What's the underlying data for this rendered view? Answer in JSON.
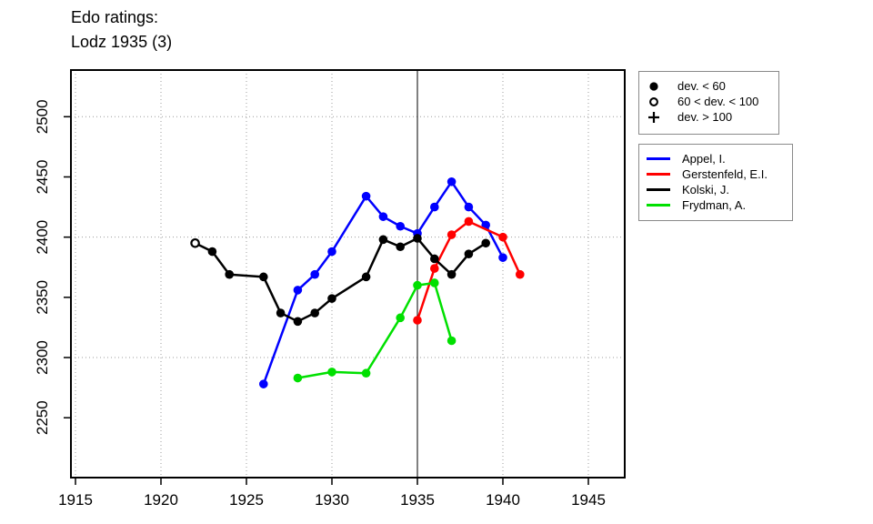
{
  "chart_data": {
    "type": "line",
    "title": "Edo ratings:",
    "subtitle": "Lodz 1935 (3)",
    "xlabel": "",
    "ylabel": "",
    "xlim": [
      1913.5,
      1947
    ],
    "ylim": [
      2195,
      2540
    ],
    "x_ticks": [
      1915,
      1920,
      1925,
      1930,
      1935,
      1940,
      1945
    ],
    "y_ticks": [
      2250,
      2300,
      2350,
      2400,
      2450,
      2500
    ],
    "v_gridlines": [
      1915,
      1920,
      1925,
      1930,
      1940,
      1945
    ],
    "h_gridlines": [
      2300,
      2400,
      2500
    ],
    "event_line_x": 1935,
    "grid": true,
    "legend_position": "top-right",
    "marker_legend": [
      {
        "symbol": "filled-circle",
        "label": "dev. < 60"
      },
      {
        "symbol": "open-circle",
        "label": "60 < dev. < 100"
      },
      {
        "symbol": "plus",
        "label": "dev. > 100"
      }
    ],
    "series": [
      {
        "name": "Appel, I.",
        "color": "#0000FF",
        "points": [
          [
            1926,
            2278
          ],
          [
            1928,
            2356
          ],
          [
            1929,
            2369
          ],
          [
            1930,
            2388
          ],
          [
            1932,
            2434
          ],
          [
            1933,
            2417
          ],
          [
            1934,
            2409
          ],
          [
            1935,
            2403
          ],
          [
            1936,
            2425
          ],
          [
            1937,
            2446
          ],
          [
            1938,
            2425
          ],
          [
            1939,
            2410
          ],
          [
            1940,
            2383
          ]
        ]
      },
      {
        "name": "Gerstenfeld, E.I.",
        "color": "#FF0000",
        "points": [
          [
            1935,
            2331
          ],
          [
            1936,
            2374
          ],
          [
            1937,
            2402
          ],
          [
            1938,
            2413
          ],
          [
            1940,
            2400
          ],
          [
            1941,
            2369
          ]
        ]
      },
      {
        "name": "Kolski, J.",
        "color": "#000000",
        "points": [
          [
            1922,
            2395,
            "open"
          ],
          [
            1923,
            2388
          ],
          [
            1924,
            2369
          ],
          [
            1926,
            2367
          ],
          [
            1927,
            2337
          ],
          [
            1928,
            2330
          ],
          [
            1929,
            2337
          ],
          [
            1930,
            2349
          ],
          [
            1932,
            2367
          ],
          [
            1933,
            2398
          ],
          [
            1934,
            2392
          ],
          [
            1935,
            2399
          ],
          [
            1936,
            2382
          ],
          [
            1937,
            2369
          ],
          [
            1938,
            2386
          ],
          [
            1939,
            2395
          ]
        ]
      },
      {
        "name": "Frydman, A.",
        "color": "#00E000",
        "points": [
          [
            1928,
            2283
          ],
          [
            1930,
            2288
          ],
          [
            1932,
            2287
          ],
          [
            1934,
            2333
          ],
          [
            1935,
            2360
          ],
          [
            1936,
            2362
          ],
          [
            1937,
            2314
          ]
        ]
      }
    ]
  }
}
